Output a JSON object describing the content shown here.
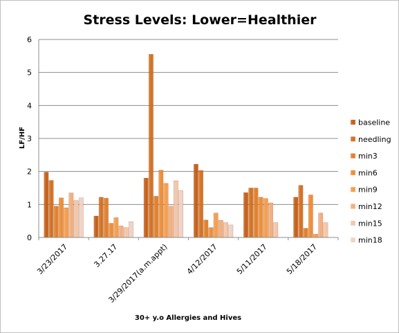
{
  "chart_data": {
    "type": "bar",
    "title": "Stress Levels: Lower=Healthier",
    "xlabel": "30+ y.o Allergies and Hives",
    "ylabel": "LF/HF",
    "ylim": [
      0,
      6
    ],
    "yticks": [
      0,
      1,
      2,
      3,
      4,
      5,
      6
    ],
    "grid": true,
    "legend_position": "right",
    "categories": [
      "3/23/2017",
      "3.27.17",
      "3/29/2017(a.m.appt)",
      "4/12/2017",
      "5/11/2017",
      "5/18/2017"
    ],
    "series": [
      {
        "name": "baseline",
        "color": "#c55a11",
        "values": [
          1.98,
          0.65,
          1.8,
          2.22,
          1.36,
          1.22
        ]
      },
      {
        "name": "needling",
        "color": "#d26d1b",
        "values": [
          1.73,
          1.22,
          5.55,
          2.03,
          1.5,
          1.58
        ]
      },
      {
        "name": "min3",
        "color": "#e07b25",
        "values": [
          0.95,
          1.19,
          1.25,
          0.53,
          1.5,
          0.28
        ]
      },
      {
        "name": "min6",
        "color": "#ee8a31",
        "values": [
          1.2,
          0.43,
          2.04,
          0.3,
          1.22,
          1.29
        ]
      },
      {
        "name": "min9",
        "color": "#f49a47",
        "values": [
          0.9,
          0.6,
          1.64,
          0.74,
          1.18,
          0.1
        ]
      },
      {
        "name": "min12",
        "color": "#f3ab7a",
        "values": [
          1.35,
          0.35,
          0.95,
          0.52,
          1.05,
          0.74
        ]
      },
      {
        "name": "min15",
        "color": "#f3c4a6",
        "values": [
          1.12,
          0.3,
          1.72,
          0.45,
          0.45,
          0.45
        ]
      },
      {
        "name": "min18",
        "color": "#f0d1c3",
        "values": [
          1.2,
          0.48,
          1.42,
          0.38,
          0,
          0
        ]
      }
    ]
  }
}
